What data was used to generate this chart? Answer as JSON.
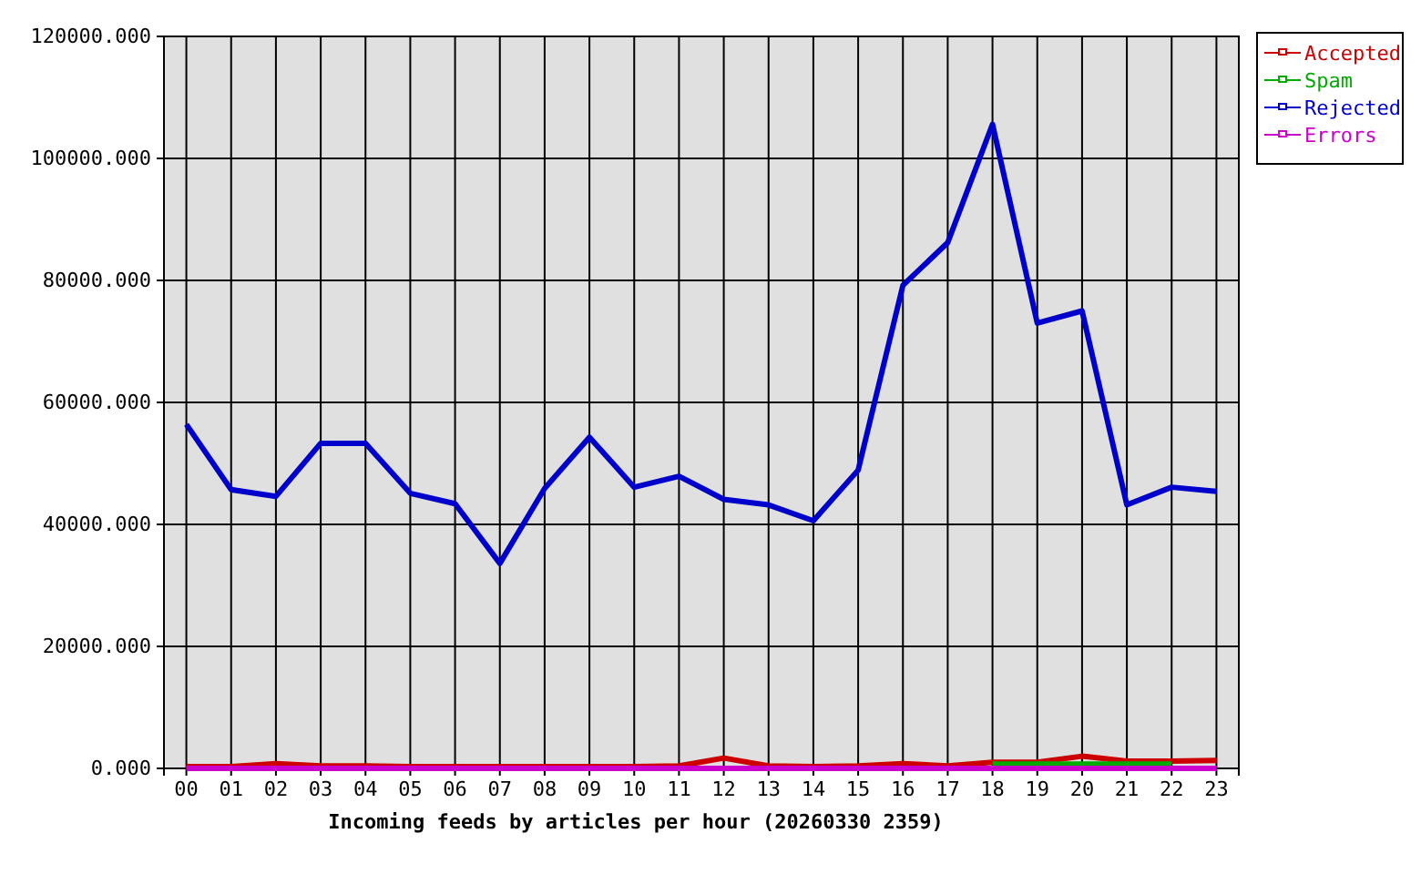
{
  "chart_data": {
    "type": "line",
    "xlabel": "Incoming feeds by articles per hour (20260330 2359)",
    "categories": [
      "00",
      "01",
      "02",
      "03",
      "04",
      "05",
      "06",
      "07",
      "08",
      "09",
      "10",
      "11",
      "12",
      "13",
      "14",
      "15",
      "16",
      "17",
      "18",
      "19",
      "20",
      "21",
      "22",
      "23"
    ],
    "series": [
      {
        "name": "Accepted",
        "color": "#cc0000",
        "values": [
          300,
          300,
          800,
          400,
          400,
          300,
          300,
          300,
          300,
          300,
          300,
          400,
          1700,
          400,
          300,
          400,
          800,
          400,
          1000,
          1000,
          2000,
          1200,
          1200,
          1300
        ]
      },
      {
        "name": "Spam",
        "color": "#00aa00",
        "values": [
          null,
          null,
          null,
          null,
          null,
          null,
          null,
          null,
          null,
          null,
          null,
          null,
          null,
          null,
          null,
          null,
          null,
          null,
          700,
          700,
          700,
          700,
          700,
          null
        ]
      },
      {
        "name": "Rejected",
        "color": "#0000cc",
        "values": [
          56400,
          45700,
          44600,
          53300,
          53300,
          45100,
          43400,
          33600,
          45900,
          54300,
          46100,
          47900,
          44100,
          43200,
          40600,
          48900,
          79200,
          86200,
          105600,
          73000,
          75000,
          43200,
          46100,
          45400
        ]
      },
      {
        "name": "Errors",
        "color": "#cc00cc",
        "values": [
          0,
          0,
          0,
          0,
          0,
          0,
          0,
          0,
          0,
          0,
          0,
          0,
          0,
          0,
          0,
          0,
          0,
          0,
          0,
          0,
          0,
          0,
          0,
          0
        ]
      }
    ],
    "ylim": [
      0,
      120000
    ],
    "yticks": [
      {
        "value": 0,
        "label": "0.000"
      },
      {
        "value": 20000,
        "label": "20000.000"
      },
      {
        "value": 40000,
        "label": "40000.000"
      },
      {
        "value": 60000,
        "label": "60000.000"
      },
      {
        "value": 80000,
        "label": "80000.000"
      },
      {
        "value": 100000,
        "label": "100000.000"
      },
      {
        "value": 120000,
        "label": "120000.000"
      }
    ],
    "grid": true,
    "legend": "top right",
    "line_style": "solid"
  }
}
